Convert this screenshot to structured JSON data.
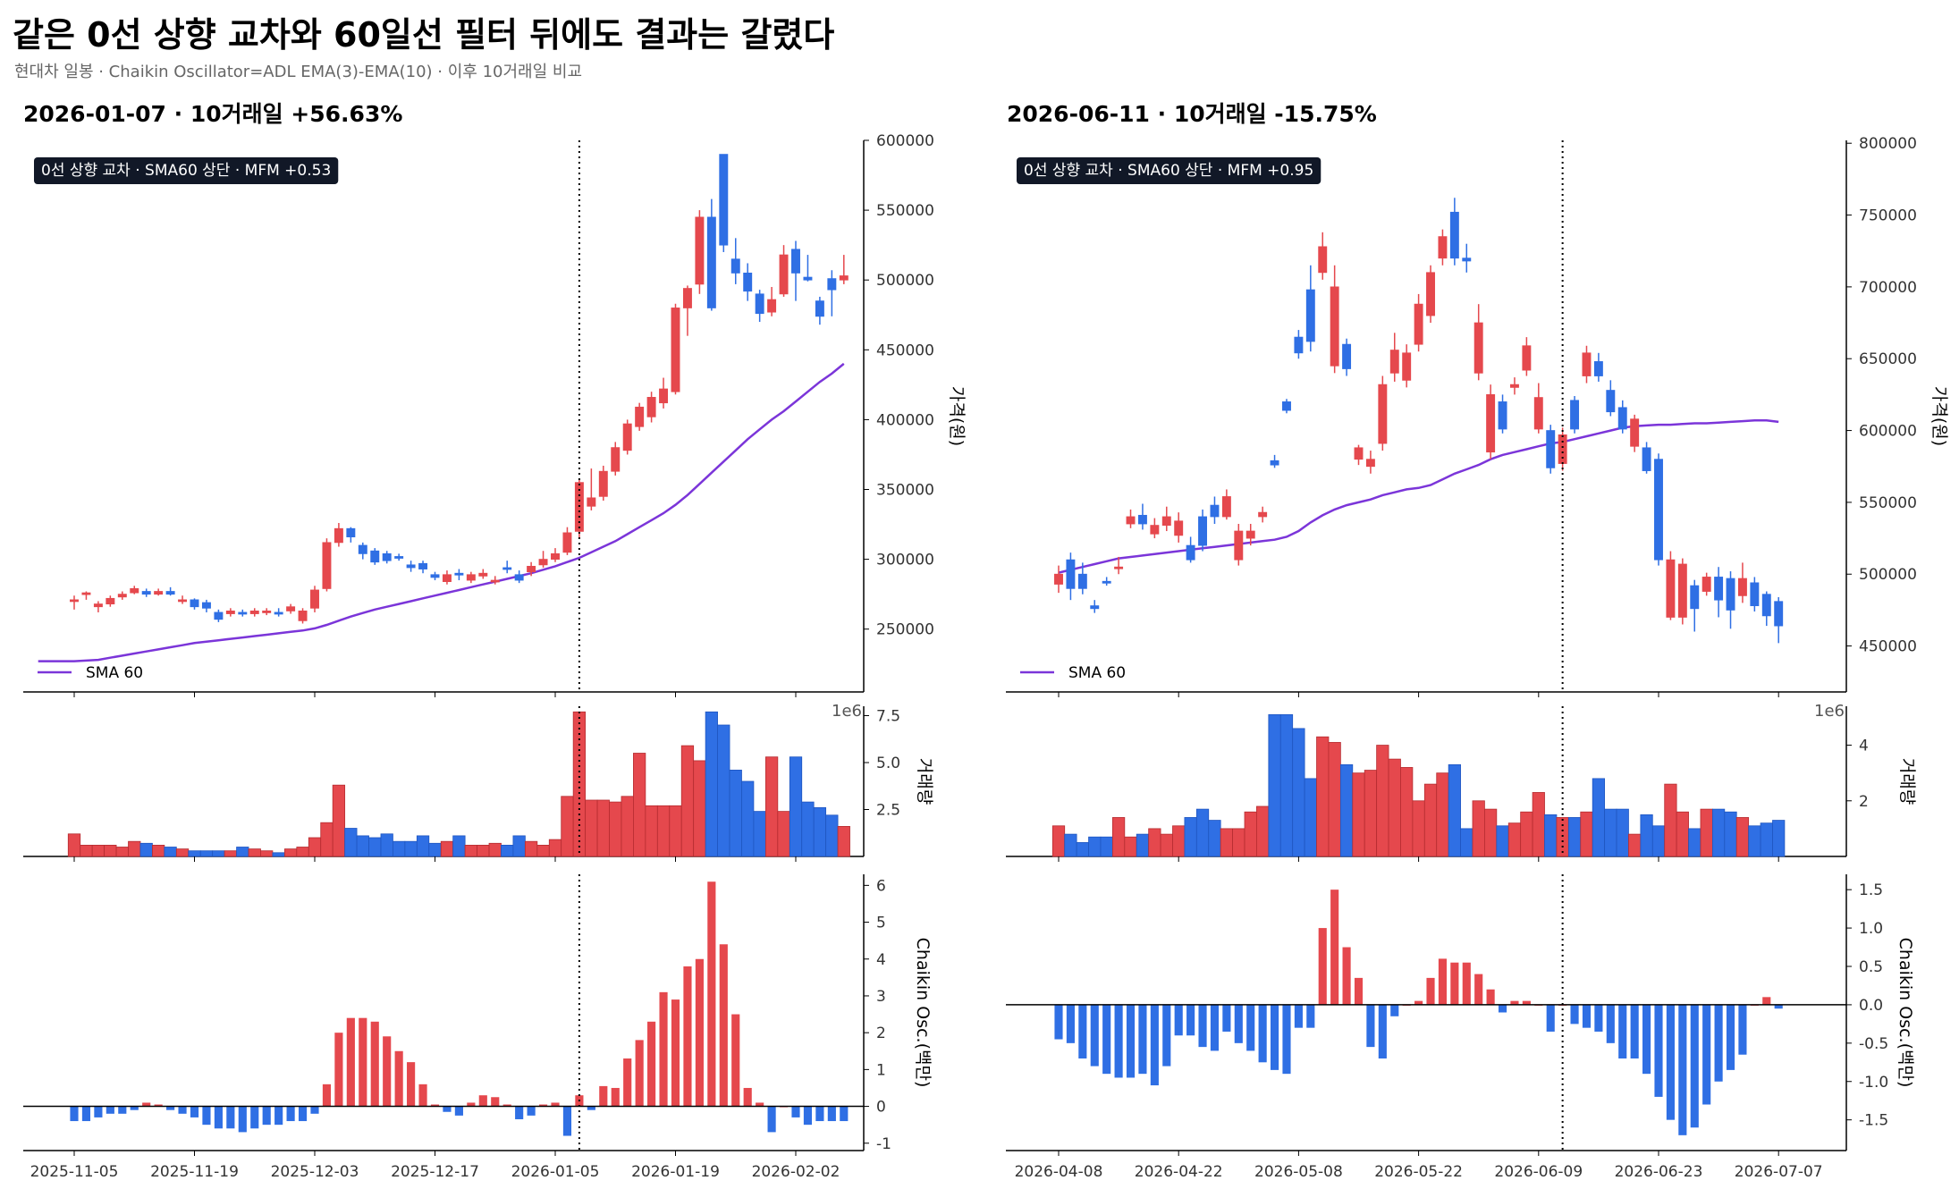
{
  "title": "같은 0선 상향 교차와 60일선 필터 뒤에도 결과는 갈렸다",
  "subtitle": "현대차 일봉 · Chaikin Oscillator=ADL EMA(3)-EMA(10) · 이후 10거래일 비교",
  "colors": {
    "up": "#e5484d",
    "down": "#2f6fe4",
    "sma": "#7b35d9",
    "badge_bg": "#111827"
  },
  "chart_data": [
    {
      "type": "candlestick",
      "title": "2026-01-07 · 10거래일 +56.63%",
      "badge": "0선 상향 교차 · SMA60 상단 · MFM +0.53",
      "sma_label": "SMA 60",
      "price_ylabel": "가격(원)",
      "volume_ylabel": "거래량",
      "osc_ylabel": "Chaikin Osc.(백만)",
      "volume_exponent": "1e6",
      "signal_index": 42,
      "price_ylim": [
        205000,
        600000
      ],
      "price_ticks": [
        250000,
        300000,
        350000,
        400000,
        450000,
        500000,
        550000,
        600000
      ],
      "volume_ylim": [
        0,
        8.0
      ],
      "volume_ticks": [
        2.5,
        5.0,
        7.5
      ],
      "volume_tick_labels": [
        "2.5",
        "5.0",
        "7.5"
      ],
      "osc_ylim": [
        -1.2,
        6.3
      ],
      "osc_ticks": [
        -1,
        0,
        1,
        2,
        3,
        4,
        5,
        6
      ],
      "osc_tick_labels": [
        "-1",
        "0",
        "1",
        "2",
        "3",
        "4",
        "5",
        "6"
      ],
      "x_ticks": [
        {
          "i": 0,
          "label": "2025-11-05"
        },
        {
          "i": 10,
          "label": "2025-11-19"
        },
        {
          "i": 20,
          "label": "2025-12-03"
        },
        {
          "i": 30,
          "label": "2025-12-17"
        },
        {
          "i": 40,
          "label": "2026-01-05"
        },
        {
          "i": 50,
          "label": "2026-01-19"
        },
        {
          "i": 60,
          "label": "2026-02-02"
        }
      ],
      "open": [
        271000,
        275000,
        266000,
        268000,
        273000,
        276000,
        277000,
        275000,
        277000,
        270000,
        271000,
        269000,
        262000,
        261000,
        262000,
        261000,
        262000,
        262000,
        263000,
        256000,
        265000,
        279000,
        312000,
        322000,
        310000,
        306000,
        304000,
        302000,
        296000,
        297000,
        289000,
        284000,
        290000,
        285000,
        288000,
        285000,
        294000,
        289000,
        291000,
        296000,
        300000,
        305000,
        320000,
        338000,
        345000,
        363000,
        378000,
        395000,
        402000,
        412000,
        420000,
        480000,
        497000,
        545000,
        590000,
        515000,
        505000,
        490000,
        477000,
        490000,
        522000,
        502000,
        485000,
        501000,
        500000
      ],
      "close": [
        271000,
        276000,
        268000,
        272000,
        275000,
        279000,
        275000,
        277000,
        275000,
        271000,
        266000,
        265000,
        257000,
        263000,
        261000,
        263000,
        263000,
        261000,
        266000,
        263000,
        278000,
        312000,
        322000,
        316000,
        304000,
        298000,
        299000,
        301000,
        294000,
        293000,
        287000,
        289000,
        289000,
        289000,
        290000,
        285000,
        293000,
        285000,
        295000,
        300000,
        304000,
        319000,
        355000,
        344000,
        363000,
        380000,
        397000,
        409000,
        416000,
        422000,
        480000,
        494000,
        545000,
        480000,
        525000,
        505000,
        492000,
        476000,
        486000,
        518000,
        505000,
        500000,
        474000,
        493000,
        503000
      ],
      "high": [
        274000,
        277000,
        270000,
        274000,
        277000,
        281000,
        279000,
        279000,
        280000,
        274000,
        272000,
        271000,
        264000,
        265000,
        264000,
        265000,
        265000,
        265000,
        268000,
        265000,
        281000,
        315000,
        326000,
        323000,
        312000,
        308000,
        306000,
        304000,
        299000,
        299000,
        291000,
        292000,
        293000,
        291000,
        293000,
        288000,
        299000,
        292000,
        298000,
        306000,
        308000,
        323000,
        358000,
        365000,
        367000,
        384000,
        400000,
        412000,
        420000,
        430000,
        483000,
        496000,
        550000,
        558000,
        590000,
        530000,
        512000,
        493000,
        495000,
        525000,
        528000,
        518000,
        488000,
        507000,
        518000
      ],
      "low": [
        264000,
        271000,
        262000,
        266000,
        271000,
        275000,
        273000,
        274000,
        274000,
        268000,
        264000,
        262000,
        255000,
        259000,
        259000,
        259000,
        260000,
        259000,
        261000,
        254000,
        262000,
        277000,
        309000,
        312000,
        300000,
        296000,
        297000,
        299000,
        291000,
        290000,
        285000,
        282000,
        285000,
        283000,
        286000,
        282000,
        290000,
        283000,
        288000,
        294000,
        298000,
        303000,
        315000,
        335000,
        342000,
        360000,
        375000,
        392000,
        398000,
        408000,
        418000,
        460000,
        490000,
        478000,
        520000,
        497000,
        485000,
        470000,
        474000,
        488000,
        485000,
        499000,
        468000,
        474000,
        497000
      ],
      "sma60": [
        227000,
        227500,
        228000,
        229500,
        231000,
        232500,
        234000,
        235500,
        237000,
        238500,
        240000,
        241000,
        242000,
        243000,
        244000,
        245000,
        246000,
        247000,
        248000,
        249000,
        250500,
        253000,
        256000,
        259000,
        261500,
        264000,
        266000,
        268000,
        270000,
        272000,
        274000,
        276000,
        278000,
        280000,
        282000,
        284000,
        286000,
        288000,
        290000,
        292500,
        295000,
        298000,
        301000,
        305000,
        309000,
        313000,
        318000,
        323000,
        328000,
        333000,
        339000,
        346000,
        354000,
        362000,
        370000,
        378000,
        386000,
        393000,
        400000,
        406000,
        413000,
        420000,
        427000,
        433000,
        440000
      ],
      "sma_start_index": -3,
      "sma_extra": [
        227000,
        227000,
        227000
      ],
      "volume": [
        1.2,
        0.6,
        0.6,
        0.6,
        0.5,
        0.8,
        0.7,
        0.6,
        0.5,
        0.4,
        0.3,
        0.3,
        0.3,
        0.3,
        0.5,
        0.4,
        0.3,
        0.2,
        0.4,
        0.5,
        1.0,
        1.8,
        3.8,
        1.5,
        1.1,
        1.0,
        1.2,
        0.8,
        0.8,
        1.1,
        0.7,
        0.8,
        1.1,
        0.6,
        0.6,
        0.7,
        0.6,
        1.1,
        0.8,
        0.6,
        0.9,
        3.2,
        7.7,
        3.0,
        3.0,
        2.9,
        3.2,
        5.5,
        2.7,
        2.7,
        2.7,
        5.9,
        5.1,
        7.7,
        7.0,
        4.6,
        4.0,
        2.4,
        5.3,
        2.4,
        5.3,
        2.9,
        2.6,
        2.2,
        1.6
      ],
      "osc": [
        -0.4,
        -0.4,
        -0.3,
        -0.2,
        -0.2,
        -0.1,
        0.1,
        0.05,
        -0.1,
        -0.2,
        -0.3,
        -0.5,
        -0.6,
        -0.6,
        -0.7,
        -0.6,
        -0.5,
        -0.5,
        -0.4,
        -0.4,
        -0.2,
        0.6,
        2.0,
        2.4,
        2.4,
        2.3,
        1.9,
        1.5,
        1.2,
        0.6,
        0.05,
        -0.15,
        -0.25,
        0.1,
        0.3,
        0.25,
        0.05,
        -0.35,
        -0.25,
        0.05,
        0.1,
        -0.8,
        0.3,
        -0.1,
        0.55,
        0.5,
        1.3,
        1.8,
        2.3,
        3.1,
        2.9,
        3.8,
        4.0,
        6.1,
        4.4,
        2.5,
        0.5,
        0.1,
        -0.7,
        0.0,
        -0.3,
        -0.5,
        -0.4,
        -0.4,
        -0.4
      ]
    },
    {
      "type": "candlestick",
      "title": "2026-06-11 · 10거래일 -15.75%",
      "badge": "0선 상향 교차 · SMA60 상단 · MFM +0.95",
      "sma_label": "SMA 60",
      "price_ylabel": "가격(원)",
      "volume_ylabel": "거래량",
      "osc_ylabel": "Chaikin Osc.(백만)",
      "volume_exponent": "1e6",
      "signal_index": 42,
      "price_ylim": [
        418000,
        802000
      ],
      "price_ticks": [
        450000,
        500000,
        550000,
        600000,
        650000,
        700000,
        750000,
        800000
      ],
      "volume_ylim": [
        0,
        5.4
      ],
      "volume_ticks": [
        2,
        4
      ],
      "volume_tick_labels": [
        "2",
        "4"
      ],
      "osc_ylim": [
        -1.9,
        1.7
      ],
      "osc_ticks": [
        -1.5,
        -1.0,
        -0.5,
        0.0,
        0.5,
        1.0,
        1.5
      ],
      "osc_tick_labels": [
        "-1.5",
        "-1.0",
        "-0.5",
        "0.0",
        "0.5",
        "1.0",
        "1.5"
      ],
      "x_ticks": [
        {
          "i": 0,
          "label": "2026-04-08"
        },
        {
          "i": 10,
          "label": "2026-04-22"
        },
        {
          "i": 20,
          "label": "2026-05-08"
        },
        {
          "i": 30,
          "label": "2026-05-22"
        },
        {
          "i": 40,
          "label": "2026-06-09"
        },
        {
          "i": 50,
          "label": "2026-06-23"
        },
        {
          "i": 60,
          "label": "2026-07-07"
        }
      ],
      "open": [
        493000,
        510000,
        500000,
        478000,
        495000,
        505000,
        535000,
        541000,
        528000,
        534000,
        527000,
        520000,
        540000,
        548000,
        540000,
        510000,
        525000,
        540000,
        579000,
        620000,
        665000,
        698000,
        710000,
        645000,
        660000,
        580000,
        575000,
        591000,
        640000,
        635000,
        660000,
        680000,
        720000,
        752000,
        720000,
        640000,
        585000,
        620000,
        630000,
        642000,
        601000,
        600000,
        577000,
        621000,
        638000,
        648000,
        628000,
        616000,
        589000,
        588000,
        580000,
        470000,
        470000,
        492000,
        488000,
        498000,
        497000,
        485000,
        494000,
        486000,
        481000
      ],
      "close": [
        500000,
        490000,
        490000,
        476000,
        494000,
        505000,
        540000,
        535000,
        534000,
        540000,
        537000,
        510000,
        520000,
        540000,
        554000,
        530000,
        530000,
        543000,
        576000,
        614000,
        654000,
        662000,
        728000,
        700000,
        643000,
        588000,
        580000,
        632000,
        656000,
        654000,
        688000,
        710000,
        735000,
        720000,
        718000,
        675000,
        625000,
        601000,
        632000,
        659000,
        623000,
        574000,
        597000,
        601000,
        654000,
        638000,
        613000,
        601000,
        608000,
        572000,
        510000,
        510000,
        507000,
        476000,
        498000,
        482000,
        475000,
        497000,
        478000,
        471000,
        464000
      ],
      "high": [
        506000,
        515000,
        508000,
        482000,
        498000,
        512000,
        545000,
        549000,
        539000,
        547000,
        543000,
        526000,
        545000,
        554000,
        559000,
        535000,
        535000,
        547000,
        583000,
        622000,
        670000,
        715000,
        738000,
        715000,
        664000,
        590000,
        586000,
        638000,
        668000,
        660000,
        695000,
        715000,
        740000,
        762000,
        730000,
        688000,
        632000,
        625000,
        637000,
        665000,
        633000,
        604000,
        602000,
        624000,
        659000,
        654000,
        635000,
        621000,
        611000,
        592000,
        584000,
        516000,
        511000,
        496000,
        501000,
        505000,
        502000,
        508000,
        498000,
        488000,
        484000
      ],
      "low": [
        487000,
        482000,
        486000,
        473000,
        492000,
        500000,
        532000,
        531000,
        525000,
        530000,
        522000,
        508000,
        516000,
        535000,
        538000,
        506000,
        520000,
        536000,
        574000,
        612000,
        650000,
        655000,
        705000,
        640000,
        638000,
        576000,
        570000,
        586000,
        634000,
        630000,
        655000,
        675000,
        715000,
        715000,
        710000,
        635000,
        580000,
        598000,
        625000,
        638000,
        598000,
        570000,
        572000,
        598000,
        633000,
        634000,
        610000,
        598000,
        585000,
        570000,
        506000,
        468000,
        465000,
        460000,
        485000,
        470000,
        462000,
        480000,
        474000,
        464000,
        452000
      ],
      "sma60": [
        501000,
        503000,
        505000,
        507000,
        509000,
        511000,
        512000,
        513000,
        514000,
        515000,
        516000,
        517000,
        518000,
        519000,
        520000,
        521000,
        522000,
        523000,
        524000,
        526000,
        530000,
        536000,
        541000,
        545000,
        548000,
        550000,
        552000,
        555000,
        557000,
        559000,
        560000,
        562000,
        566000,
        570000,
        573000,
        576000,
        580000,
        583000,
        585000,
        587000,
        589000,
        591000,
        592000,
        594000,
        596000,
        598000,
        600000,
        602000,
        603000,
        603500,
        604000,
        604000,
        604500,
        605000,
        605000,
        605500,
        606000,
        606500,
        607000,
        607000,
        606000
      ],
      "sma_start_index": 0,
      "sma_extra": [],
      "volume": [
        1.1,
        0.8,
        0.5,
        0.7,
        0.7,
        1.4,
        0.7,
        0.8,
        1.0,
        0.8,
        1.1,
        1.4,
        1.7,
        1.3,
        1.0,
        1.0,
        1.6,
        1.8,
        5.1,
        5.1,
        4.6,
        2.8,
        4.3,
        4.1,
        3.3,
        3.0,
        3.1,
        4.0,
        3.5,
        3.2,
        2.0,
        2.6,
        3.0,
        3.3,
        1.0,
        2.0,
        1.7,
        1.1,
        1.2,
        1.6,
        2.3,
        1.5,
        1.4,
        1.4,
        1.6,
        2.8,
        1.7,
        1.7,
        0.8,
        1.5,
        1.1,
        2.6,
        1.6,
        1.0,
        1.7,
        1.7,
        1.6,
        1.4,
        1.1,
        1.2,
        1.3
      ],
      "osc": [
        -0.45,
        -0.5,
        -0.7,
        -0.8,
        -0.9,
        -0.95,
        -0.95,
        -0.9,
        -1.05,
        -0.8,
        -0.4,
        -0.4,
        -0.55,
        -0.6,
        -0.35,
        -0.5,
        -0.6,
        -0.75,
        -0.85,
        -0.9,
        -0.3,
        -0.3,
        1.0,
        1.5,
        0.75,
        0.35,
        -0.55,
        -0.7,
        -0.15,
        0.0,
        0.05,
        0.35,
        0.6,
        0.55,
        0.55,
        0.4,
        0.2,
        -0.1,
        0.05,
        0.05,
        0.0,
        -0.35,
        0.0,
        -0.25,
        -0.3,
        -0.35,
        -0.5,
        -0.7,
        -0.7,
        -0.9,
        -1.2,
        -1.5,
        -1.7,
        -1.6,
        -1.3,
        -1.0,
        -0.85,
        -0.65,
        0.0,
        0.1,
        -0.05
      ]
    }
  ]
}
